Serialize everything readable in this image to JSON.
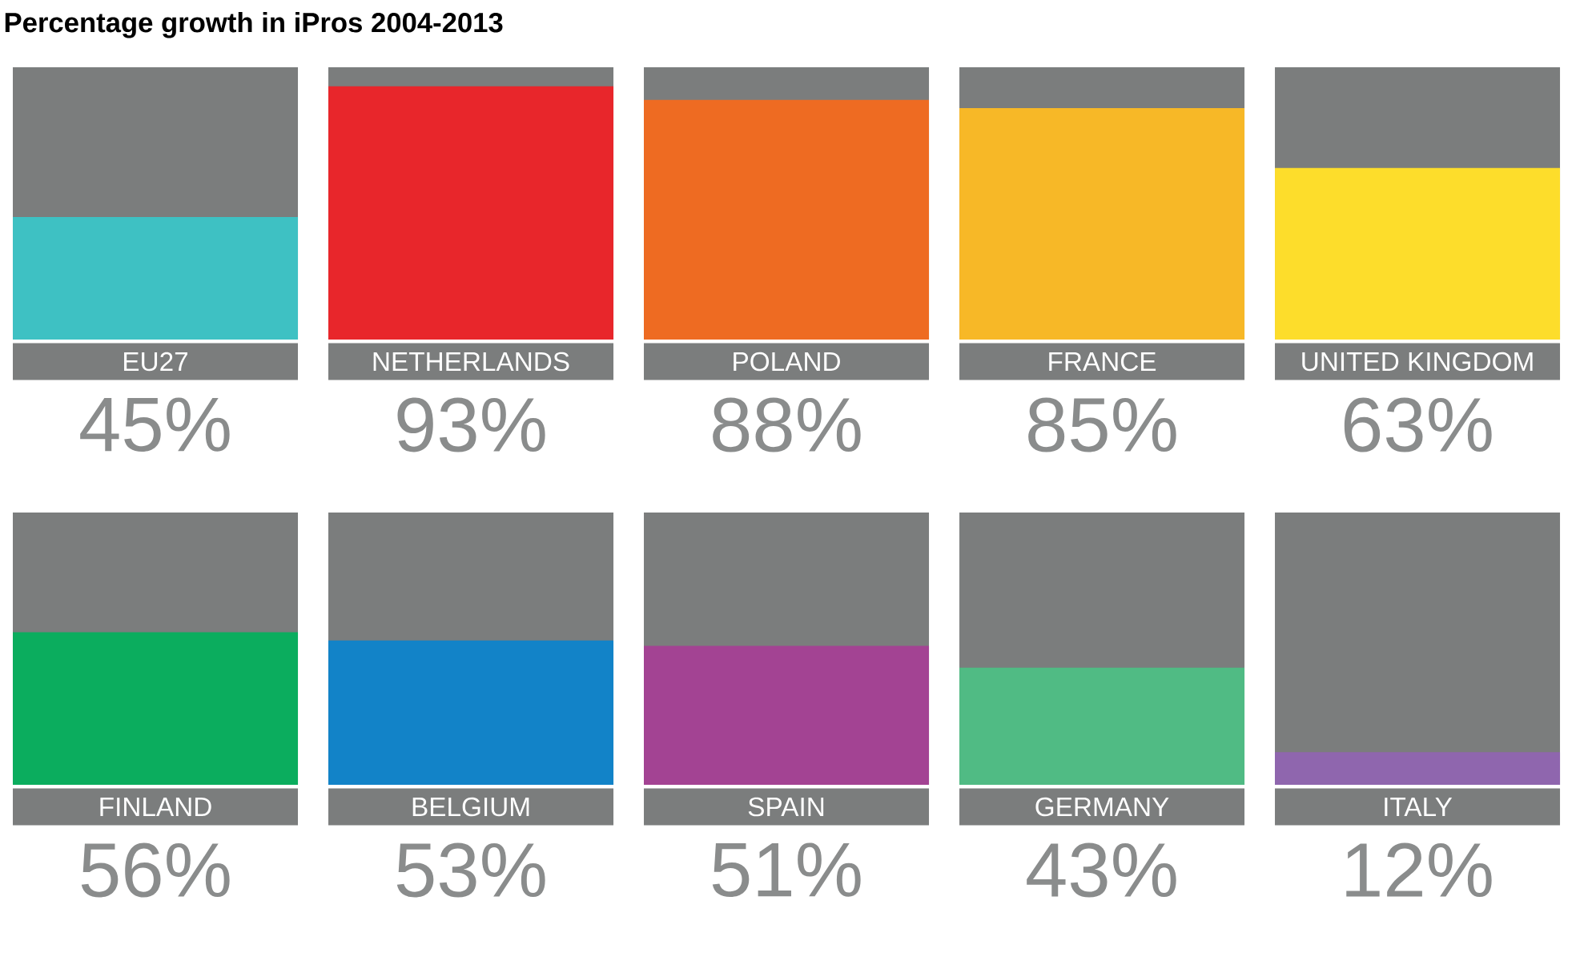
{
  "chart_data": [
    {
      "type": "bar",
      "title": "Percentage growth in iPros 2004-2013",
      "categories": [
        "EU27",
        "NETHERLANDS",
        "POLAND",
        "FRANCE",
        "UNITED KINGDOM"
      ],
      "values": [
        45,
        93,
        88,
        85,
        63
      ],
      "value_labels": [
        "45%",
        "93%",
        "88%",
        "85%",
        "63%"
      ],
      "colors": [
        "#3ec1c3",
        "#e8262b",
        "#ee6b22",
        "#f7b827",
        "#fddd2b"
      ],
      "ylim": [
        0,
        100
      ]
    },
    {
      "type": "bar",
      "categories": [
        "FINLAND",
        "BELGIUM",
        "SPAIN",
        "GERMANY",
        "ITALY"
      ],
      "values": [
        56,
        53,
        51,
        43,
        12
      ],
      "value_labels": [
        "56%",
        "53%",
        "51%",
        "43%",
        "12%"
      ],
      "colors": [
        "#0bad5e",
        "#1283c8",
        "#a34393",
        "#50bb84",
        "#8f66ae"
      ],
      "ylim": [
        0,
        100
      ]
    }
  ]
}
